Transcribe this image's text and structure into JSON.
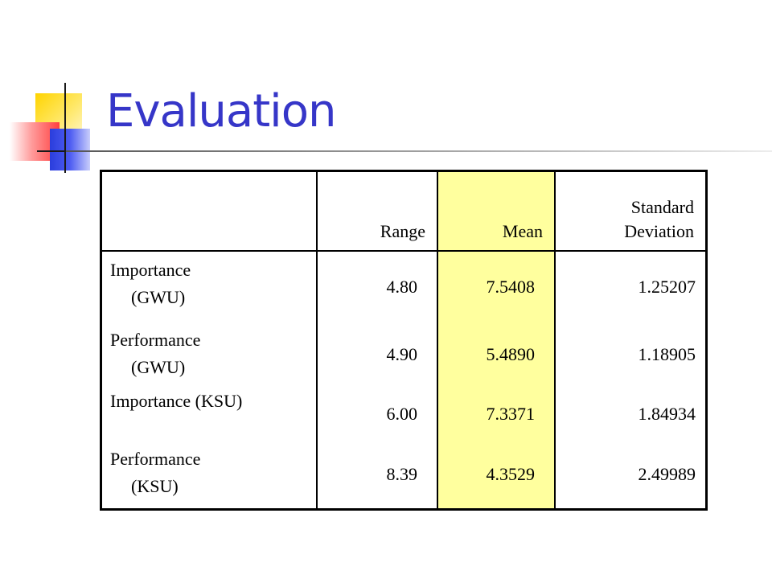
{
  "slide": {
    "title": "Evaluation"
  },
  "table": {
    "headers": {
      "label": "",
      "range": "Range",
      "mean": "Mean",
      "sd_line1": "Standard",
      "sd_line2": "Deviation"
    },
    "highlight_color": "#ffff9e",
    "rows": [
      {
        "label_line1": "Importance",
        "label_line2": "(GWU)",
        "range": "4.80",
        "mean": "7.5408",
        "sd": "1.25207"
      },
      {
        "label_line1": "Performance",
        "label_line2": "(GWU)",
        "range": "4.90",
        "mean": "5.4890",
        "sd": "1.18905"
      },
      {
        "label_line1": "Importance (KSU)",
        "label_line2": "",
        "range": "6.00",
        "mean": "7.3371",
        "sd": "1.84934"
      },
      {
        "label_line1": "Performance",
        "label_line2": "(KSU)",
        "range": "8.39",
        "mean": "4.3529",
        "sd": "2.49989"
      }
    ]
  },
  "colors": {
    "title": "#3636c8",
    "logo_yellow": "#ffd400",
    "logo_red": "#ff3f3f",
    "logo_blue": "#2a3ddc"
  }
}
